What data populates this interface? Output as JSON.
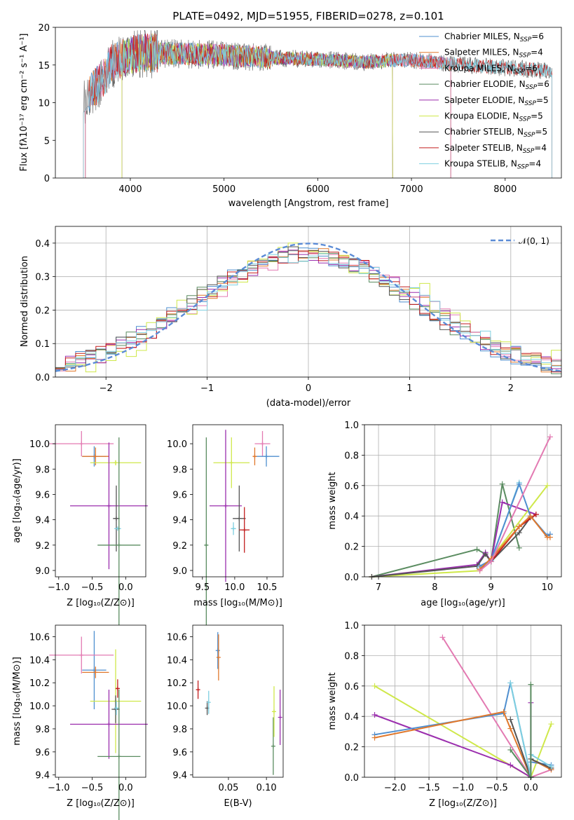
{
  "colors": {
    "Chabrier MILES": "#4f8fcf",
    "Salpeter MILES": "#e0782c",
    "Kroupa MILES": "#e37ab2",
    "Chabrier ELODIE": "#5a8c60",
    "Salpeter ELODIE": "#9b2fae",
    "Kroupa ELODIE": "#cfe84a",
    "Chabrier STELIB": "#555555",
    "Salpeter STELIB": "#c21d1d",
    "Kroupa STELIB": "#7ecfe0"
  },
  "chart_data": [
    {
      "id": "spectrum",
      "type": "line",
      "title": "PLATE=0492, MJD=51955, FIBERID=0278, z=0.101",
      "xlabel": "wavelength [Angstrom, rest frame]",
      "ylabel": "Flux [fλ10⁻¹⁷ erg cm⁻² s⁻¹ A⁻¹]",
      "xlim": [
        3200,
        8600
      ],
      "ylim": [
        0,
        20
      ],
      "xticks": [
        "4000",
        "5000",
        "6000",
        "7000",
        "8000"
      ],
      "yticks": [
        "0",
        "5",
        "10",
        "15",
        "20"
      ],
      "grid": false,
      "legend_position": "top-right",
      "legend": [
        {
          "model": "Chabrier MILES",
          "label": "Chabrier MILES, N",
          "sub": "SSP",
          "tail": "=6"
        },
        {
          "model": "Salpeter MILES",
          "label": "Salpeter MILES, N",
          "sub": "SSP",
          "tail": "=4"
        },
        {
          "model": "Kroupa MILES",
          "label": "Kroupa MILES, N",
          "sub": "SSP",
          "tail": "=6"
        },
        {
          "model": "Chabrier ELODIE",
          "label": "Chabrier ELODIE, N",
          "sub": "SSP",
          "tail": "=6"
        },
        {
          "model": "Salpeter ELODIE",
          "label": "Salpeter ELODIE, N",
          "sub": "SSP",
          "tail": "=5"
        },
        {
          "model": "Kroupa ELODIE",
          "label": "Kroupa ELODIE, N",
          "sub": "SSP",
          "tail": "=5"
        },
        {
          "model": "Chabrier STELIB",
          "label": "Chabrier STELIB, N",
          "sub": "SSP",
          "tail": "=5"
        },
        {
          "model": "Salpeter STELIB",
          "label": "Salpeter STELIB, N",
          "sub": "SSP",
          "tail": "=4"
        },
        {
          "model": "Kroupa STELIB",
          "label": "Kroupa STELIB, N",
          "sub": "SSP",
          "tail": "=4"
        }
      ],
      "continuum": {
        "x": [
          3500,
          3600,
          3700,
          3800,
          3900,
          4000,
          4100,
          4300,
          4500,
          4800,
          5000,
          5300,
          5600,
          5900,
          6200,
          6500,
          6800,
          7000,
          7300,
          7600,
          7900,
          8200,
          8500
        ],
        "y": [
          10.2,
          11.8,
          13.0,
          15.2,
          15.8,
          16.3,
          16.6,
          16.6,
          16.5,
          16.4,
          16.3,
          16.1,
          15.9,
          15.8,
          15.6,
          15.4,
          15.6,
          15.6,
          15.3,
          15.0,
          14.7,
          14.5,
          14.2
        ]
      },
      "ranges": {
        "Chabrier MILES": [
          3520,
          7420
        ],
        "Salpeter MILES": [
          3520,
          7420
        ],
        "Kroupa MILES": [
          3520,
          7420
        ],
        "Chabrier ELODIE": [
          3910,
          6800
        ],
        "Salpeter ELODIE": [
          3910,
          6800
        ],
        "Kroupa ELODIE": [
          3910,
          6800
        ],
        "Chabrier STELIB": [
          3500,
          8500
        ],
        "Salpeter STELIB": [
          3500,
          8500
        ],
        "Kroupa STELIB": [
          3500,
          8500
        ]
      }
    },
    {
      "id": "residuals",
      "type": "histogram",
      "xlabel": "(data-model)/error",
      "ylabel": "Normed distribution",
      "xlim": [
        -2.5,
        2.5
      ],
      "ylim": [
        0,
        0.45
      ],
      "xticks": [
        "−2",
        "−1",
        "0",
        "1",
        "2"
      ],
      "yticks": [
        "0.0",
        "0.1",
        "0.2",
        "0.3",
        "0.4"
      ],
      "grid": true,
      "legend_position": "top-right",
      "legend_label": "𝒩(0, 1)",
      "normal_color": "#5b8bd6",
      "bin_width": 0.1
    },
    {
      "id": "age-vs-Z",
      "type": "errorbar",
      "xlabel": "Z [log₁₀(Z/Z⊙)]",
      "ylabel": "age  [log₁₀(age/yr)]",
      "xlim": [
        -1.05,
        0.3
      ],
      "ylim": [
        8.95,
        10.15
      ],
      "xticks": [
        "−1.0",
        "−0.5",
        "0.0"
      ],
      "xtickvals": [
        -1.0,
        -0.5,
        0.0
      ],
      "yticks": [
        "9.0",
        "9.2",
        "9.4",
        "9.6",
        "9.8",
        "10.0"
      ],
      "ytickvals": [
        9.0,
        9.2,
        9.4,
        9.6,
        9.8,
        10.0
      ],
      "grid": false,
      "points": [
        {
          "model": "Kroupa MILES",
          "x": -0.66,
          "xerr": 0.48,
          "y": 10.0,
          "yerr": 0.1
        },
        {
          "model": "Chabrier MILES",
          "x": -0.47,
          "xerr": 0.18,
          "y": 9.9,
          "yerr": 0.08
        },
        {
          "model": "Salpeter MILES",
          "x": -0.45,
          "xerr": 0.2,
          "y": 9.9,
          "yerr": 0.07
        },
        {
          "model": "Kroupa ELODIE",
          "x": -0.15,
          "xerr": 0.38,
          "y": 9.85,
          "yerr": 0.02
        },
        {
          "model": "Salpeter ELODIE",
          "x": -0.25,
          "xerr": 0.58,
          "y": 9.51,
          "yerr": 0.5
        },
        {
          "model": "Chabrier STELIB",
          "x": -0.14,
          "xerr": 0.05,
          "y": 9.41,
          "yerr": 0.26
        },
        {
          "model": "Kroupa STELIB",
          "x": -0.12,
          "xerr": 0.05,
          "y": 9.33,
          "yerr": 0.0
        },
        {
          "model": "Chabrier ELODIE",
          "x": -0.1,
          "xerr": 0.32,
          "y": 9.2,
          "yerr": 0.85
        }
      ]
    },
    {
      "id": "age-vs-mass",
      "type": "errorbar",
      "xlabel": "mass [log₁₀(M/M⊙)]",
      "ylabel": "",
      "xlim": [
        9.35,
        10.75
      ],
      "ylim": [
        8.95,
        10.15
      ],
      "xticks": [
        "9.5",
        "10.0",
        "10.5"
      ],
      "xtickvals": [
        9.5,
        10.0,
        10.5
      ],
      "yticks": [
        "9.0",
        "9.2",
        "9.4",
        "9.6",
        "9.8",
        "10.0"
      ],
      "ytickvals": [
        9.0,
        9.2,
        9.4,
        9.6,
        9.8,
        10.0
      ],
      "grid": false,
      "points": [
        {
          "model": "Kroupa MILES",
          "x": 10.43,
          "xerr": 0.12,
          "y": 10.0,
          "yerr": 0.1
        },
        {
          "model": "Chabrier MILES",
          "x": 10.49,
          "xerr": 0.2,
          "y": 9.9,
          "yerr": 0.08
        },
        {
          "model": "Salpeter MILES",
          "x": 10.31,
          "xerr": 0.02,
          "y": 9.9,
          "yerr": 0.07
        },
        {
          "model": "Kroupa ELODIE",
          "x": 9.95,
          "xerr": 0.28,
          "y": 9.85,
          "yerr": 0.2
        },
        {
          "model": "Salpeter ELODIE",
          "x": 9.86,
          "xerr": 0.25,
          "y": 9.51,
          "yerr": 0.6
        },
        {
          "model": "Chabrier STELIB",
          "x": 10.07,
          "xerr": 0.1,
          "y": 9.41,
          "yerr": 0.26
        },
        {
          "model": "Salpeter STELIB",
          "x": 10.15,
          "xerr": 0.08,
          "y": 9.32,
          "yerr": 0.18
        },
        {
          "model": "Kroupa STELIB",
          "x": 9.98,
          "xerr": 0.04,
          "y": 9.33,
          "yerr": 0.05
        },
        {
          "model": "Chabrier ELODIE",
          "x": 9.56,
          "xerr": 0.02,
          "y": 9.2,
          "yerr": 0.85
        }
      ]
    },
    {
      "id": "weight-vs-age",
      "type": "line",
      "xlabel": "age  [log₁₀(age/yr)]",
      "ylabel": "mass weight",
      "xlim": [
        6.75,
        10.25
      ],
      "ylim": [
        0,
        1.0
      ],
      "xticks": [
        "7",
        "8",
        "9",
        "10"
      ],
      "xtickvals": [
        7,
        8,
        9,
        10
      ],
      "yticks": [
        "0.0",
        "0.2",
        "0.4",
        "0.6",
        "0.8",
        "1.0"
      ],
      "ytickvals": [
        0,
        0.2,
        0.4,
        0.6,
        0.8,
        1.0
      ],
      "grid": true,
      "series": [
        {
          "model": "Chabrier ELODIE",
          "x": [
            6.88,
            8.75,
            8.9,
            9.0,
            9.2,
            9.5
          ],
          "y": [
            0.0,
            0.18,
            0.15,
            0.1,
            0.61,
            0.19
          ]
        },
        {
          "model": "Salpeter ELODIE",
          "x": [
            6.88,
            8.75,
            8.9,
            9.0,
            9.2,
            9.8
          ],
          "y": [
            0.0,
            0.08,
            0.16,
            0.1,
            0.49,
            0.41
          ]
        },
        {
          "model": "Kroupa ELODIE",
          "x": [
            6.88,
            8.8,
            9.0,
            10.0
          ],
          "y": [
            0.0,
            0.04,
            0.12,
            0.6
          ]
        },
        {
          "model": "Chabrier STELIB",
          "x": [
            6.88,
            8.75,
            8.9,
            9.0,
            9.5,
            9.7
          ],
          "y": [
            0.0,
            0.07,
            0.15,
            0.1,
            0.29,
            0.39
          ]
        },
        {
          "model": "Salpeter STELIB",
          "x": [
            8.8,
            9.0,
            9.5,
            9.8
          ],
          "y": [
            0.05,
            0.1,
            0.33,
            0.41
          ]
        },
        {
          "model": "Kroupa STELIB",
          "x": [
            8.8,
            9.0,
            9.5
          ],
          "y": [
            0.06,
            0.1,
            0.62
          ]
        },
        {
          "model": "Chabrier MILES",
          "x": [
            8.8,
            9.0,
            9.5,
            9.7,
            10.0,
            10.05
          ],
          "y": [
            0.07,
            0.11,
            0.61,
            0.4,
            0.27,
            0.28
          ]
        },
        {
          "model": "Salpeter MILES",
          "x": [
            8.8,
            9.0,
            9.5,
            9.7,
            10.0,
            10.05
          ],
          "y": [
            0.05,
            0.12,
            0.33,
            0.4,
            0.26,
            0.26
          ]
        },
        {
          "model": "Kroupa MILES",
          "x": [
            8.8,
            9.0,
            10.05
          ],
          "y": [
            0.04,
            0.1,
            0.92
          ]
        }
      ]
    },
    {
      "id": "mass-vs-Z",
      "type": "errorbar",
      "xlabel": "Z [log₁₀(Z/Z⊙)]",
      "ylabel": "mass [log₁₀(M/M⊙)]",
      "xlim": [
        -1.05,
        0.3
      ],
      "ylim": [
        9.38,
        10.7
      ],
      "xticks": [
        "−1.0",
        "−0.5",
        "0.0"
      ],
      "xtickvals": [
        -1.0,
        -0.5,
        0.0
      ],
      "yticks": [
        "9.4",
        "9.6",
        "9.8",
        "10.0",
        "10.2",
        "10.4",
        "10.6"
      ],
      "ytickvals": [
        9.4,
        9.6,
        9.8,
        10.0,
        10.2,
        10.4,
        10.6
      ],
      "grid": false,
      "points": [
        {
          "model": "Chabrier MILES",
          "x": -0.47,
          "xerr": 0.18,
          "y": 10.31,
          "yerr": 0.34
        },
        {
          "model": "Kroupa MILES",
          "x": -0.66,
          "xerr": 0.48,
          "y": 10.44,
          "yerr": 0.16
        },
        {
          "model": "Salpeter MILES",
          "x": -0.45,
          "xerr": 0.2,
          "y": 10.29,
          "yerr": 0.05
        },
        {
          "model": "Kroupa ELODIE",
          "x": -0.15,
          "xerr": 0.38,
          "y": 10.04,
          "yerr": 0.45
        },
        {
          "model": "Salpeter ELODIE",
          "x": -0.25,
          "xerr": 0.58,
          "y": 9.84,
          "yerr": 0.3
        },
        {
          "model": "Salpeter STELIB",
          "x": -0.12,
          "xerr": 0.03,
          "y": 10.15,
          "yerr": 0.08
        },
        {
          "model": "Chabrier STELIB",
          "x": -0.15,
          "xerr": 0.06,
          "y": 9.97,
          "yerr": 0.12
        },
        {
          "model": "Kroupa STELIB",
          "x": -0.14,
          "xerr": 0.03,
          "y": 9.98,
          "yerr": 0.06
        },
        {
          "model": "Chabrier ELODIE",
          "x": -0.1,
          "xerr": 0.32,
          "y": 9.56,
          "yerr": 0.58
        }
      ]
    },
    {
      "id": "mass-vs-ebv",
      "type": "errorbar",
      "xlabel": "E(B-V)",
      "ylabel": "",
      "xlim": [
        0.003,
        0.122
      ],
      "ylim": [
        9.38,
        10.7
      ],
      "xticks": [
        "0.05",
        "0.10"
      ],
      "xtickvals": [
        0.05,
        0.1
      ],
      "yticks": [
        "9.4",
        "9.6",
        "9.8",
        "10.0",
        "10.2",
        "10.4",
        "10.6"
      ],
      "ytickvals": [
        9.4,
        9.6,
        9.8,
        10.0,
        10.2,
        10.4,
        10.6
      ],
      "grid": false,
      "points": [
        {
          "model": "Salpeter STELIB",
          "x": 0.01,
          "xerr": 0,
          "y": 10.14,
          "yerr": 0.08
        },
        {
          "model": "Chabrier STELIB",
          "x": 0.022,
          "xerr": 0,
          "y": 9.98,
          "yerr": 0.06
        },
        {
          "model": "Kroupa STELIB",
          "x": 0.024,
          "xerr": 0,
          "y": 10.03,
          "yerr": 0.1
        },
        {
          "model": "Chabrier MILES",
          "x": 0.036,
          "xerr": 0,
          "y": 10.48,
          "yerr": 0.16
        },
        {
          "model": "Salpeter MILES",
          "x": 0.037,
          "xerr": 0,
          "y": 10.42,
          "yerr": 0.2
        },
        {
          "model": "Chabrier ELODIE",
          "x": 0.109,
          "xerr": 0,
          "y": 9.65,
          "yerr": 0.25
        },
        {
          "model": "Kroupa ELODIE",
          "x": 0.11,
          "xerr": 0,
          "y": 9.95,
          "yerr": 0.22
        },
        {
          "model": "Salpeter ELODIE",
          "x": 0.118,
          "xerr": 0,
          "y": 9.9,
          "yerr": 0.24
        }
      ]
    },
    {
      "id": "weight-vs-Z",
      "type": "line",
      "xlabel": "Z [log₁₀(Z/Z⊙)]",
      "ylabel": "mass weight",
      "xlim": [
        -2.45,
        0.45
      ],
      "ylim": [
        0,
        1.0
      ],
      "xticks": [
        "−2.0",
        "−1.5",
        "−1.0",
        "−0.5",
        "0.0"
      ],
      "xtickvals": [
        -2.0,
        -1.5,
        -1.0,
        -0.5,
        0.0
      ],
      "yticks": [
        "0.0",
        "0.2",
        "0.4",
        "0.6",
        "0.8",
        "1.0"
      ],
      "ytickvals": [
        0,
        0.2,
        0.4,
        0.6,
        0.8,
        1.0
      ],
      "grid": true,
      "series": [
        {
          "model": "Kroupa MILES",
          "x": [
            -1.3,
            0.0,
            0.3
          ],
          "y": [
            0.92,
            0.0,
            0.05
          ]
        },
        {
          "model": "Kroupa ELODIE",
          "x": [
            -2.3,
            0.0,
            0.3
          ],
          "y": [
            0.6,
            0.0,
            0.35
          ]
        },
        {
          "model": "Salpeter ELODIE",
          "x": [
            -2.3,
            -0.3,
            0.0,
            0.0
          ],
          "y": [
            0.41,
            0.08,
            0.0,
            0.49
          ]
        },
        {
          "model": "Chabrier MILES",
          "x": [
            -2.3,
            -0.4,
            -0.3,
            0.0,
            0.0,
            0.3
          ],
          "y": [
            0.28,
            0.42,
            0.62,
            0.0,
            0.1,
            0.08
          ]
        },
        {
          "model": "Salpeter MILES",
          "x": [
            -2.3,
            -0.4,
            -0.3,
            0.0,
            0.0,
            0.3
          ],
          "y": [
            0.26,
            0.43,
            0.32,
            0.0,
            0.12,
            0.05
          ]
        },
        {
          "model": "Chabrier STELIB",
          "x": [
            -0.3,
            0.0,
            0.0,
            0.3
          ],
          "y": [
            0.38,
            0.0,
            0.12,
            0.06
          ]
        },
        {
          "model": "Kroupa STELIB",
          "x": [
            -0.3,
            0.0,
            0.0,
            0.3
          ],
          "y": [
            0.62,
            0.0,
            0.15,
            0.07
          ]
        },
        {
          "model": "Chabrier ELODIE",
          "x": [
            -0.3,
            0.0,
            0.0
          ],
          "y": [
            0.18,
            0.0,
            0.61
          ]
        }
      ]
    }
  ]
}
